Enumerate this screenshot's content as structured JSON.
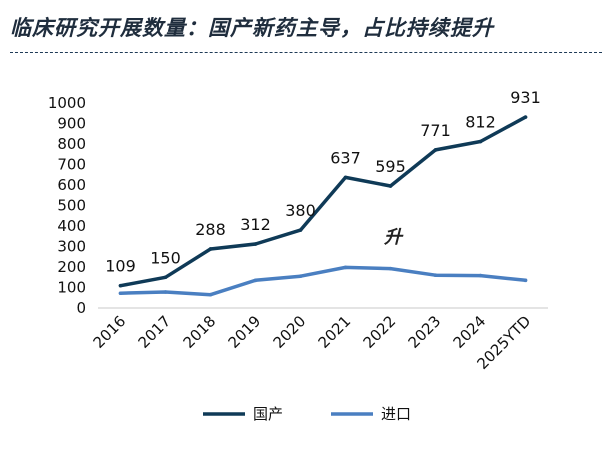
{
  "header": {
    "title": "临床研究开展数量：国产新药主导，占比持续提升"
  },
  "chart_data": {
    "type": "line",
    "title": "",
    "xlabel": "",
    "ylabel": "",
    "categories": [
      "2016",
      "2017",
      "2018",
      "2019",
      "2020",
      "2021",
      "2022",
      "2023",
      "2024",
      "2025YTD"
    ],
    "ylim": [
      0,
      1000
    ],
    "yticks": [
      0,
      100,
      200,
      300,
      400,
      500,
      600,
      700,
      800,
      900,
      1000
    ],
    "grid": false,
    "legend": "bottom",
    "annotation": "升",
    "series": [
      {
        "name": "国产",
        "color": "#0f3a57",
        "values": [
          109,
          150,
          288,
          312,
          380,
          637,
          595,
          771,
          812,
          931
        ],
        "labels": [
          "109",
          "150",
          "288",
          "312",
          "380",
          "637",
          "595",
          "771",
          "812",
          "931"
        ]
      },
      {
        "name": "进口",
        "color": "#4a7fc1",
        "values": [
          72,
          78,
          65,
          135,
          155,
          198,
          192,
          160,
          158,
          135
        ]
      }
    ]
  }
}
